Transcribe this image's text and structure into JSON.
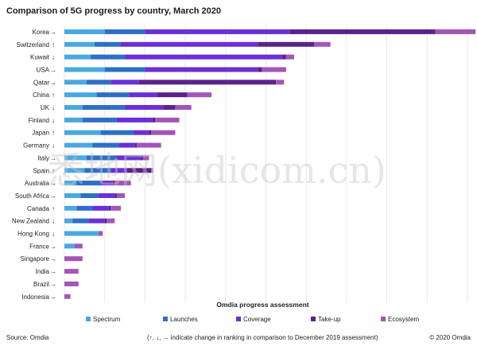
{
  "title": "Comparison of 5G progress by country, March 2020",
  "chart_data": {
    "type": "bar",
    "orientation": "horizontal",
    "stacked": true,
    "title": "Comparison of 5G progress by country, March 2020",
    "xlabel": "Omdia progress assessment",
    "ylabel": "",
    "xlim": [
      0,
      20
    ],
    "grid": true,
    "legend_position": "bottom",
    "categories": [
      "Korea",
      "Switzerland",
      "Kuwait",
      "USA",
      "Qatar",
      "China",
      "UK",
      "Finland",
      "Japan",
      "Germany",
      "Italy",
      "Spain",
      "Australia",
      "South Africa",
      "Canada",
      "New Zealand",
      "Hong Kong",
      "France",
      "Singapore",
      "India",
      "Brazil",
      "Indonesia"
    ],
    "rank_change": [
      "→",
      "↑",
      "↓",
      "→",
      "→",
      "↑",
      "↓",
      "↓",
      "↑",
      "↓",
      "→",
      "↑",
      "→",
      "→",
      "↑",
      "↓",
      "↓",
      "→",
      "→",
      "→",
      "→",
      "→"
    ],
    "series": [
      {
        "name": "Spectrum",
        "color": "#4aa8e0",
        "values": [
          2.0,
          1.5,
          1.3,
          2.0,
          1.1,
          1.6,
          0.9,
          0.9,
          1.8,
          1.4,
          1.1,
          1.0,
          0.6,
          0.8,
          0.6,
          0.4,
          1.7,
          0.5,
          0.0,
          0.0,
          0.0,
          0.0
        ]
      },
      {
        "name": "Launches",
        "color": "#2e6fc6",
        "values": [
          2.0,
          1.3,
          1.7,
          2.0,
          1.2,
          1.6,
          2.1,
          1.7,
          1.6,
          1.3,
          1.5,
          1.3,
          1.2,
          0.9,
          0.8,
          0.8,
          0.0,
          0.0,
          0.0,
          0.0,
          0.0,
          0.0
        ]
      },
      {
        "name": "Coverage",
        "color": "#6a2fd6",
        "values": [
          7.2,
          6.8,
          7.8,
          5.6,
          1.4,
          1.4,
          1.9,
          1.8,
          0.8,
          0.8,
          1.2,
          0.8,
          0.6,
          0.8,
          0.8,
          0.8,
          0.0,
          0.0,
          0.0,
          0.0,
          0.0,
          0.0
        ]
      },
      {
        "name": "Take-up",
        "color": "#5a238c",
        "values": [
          7.2,
          2.8,
          0.2,
          0.2,
          6.8,
          1.5,
          0.6,
          0.1,
          0.1,
          0.1,
          0.1,
          1.2,
          0.1,
          0.1,
          0.1,
          0.1,
          0.0,
          0.0,
          0.0,
          0.0,
          0.0,
          0.0
        ]
      },
      {
        "name": "Ecosystem",
        "color": "#a355b8",
        "values": [
          2.0,
          0.8,
          0.4,
          1.2,
          0.4,
          1.2,
          0.8,
          1.2,
          1.2,
          1.2,
          0.3,
          0.1,
          0.8,
          0.4,
          0.5,
          0.4,
          0.2,
          0.4,
          0.9,
          0.7,
          0.7,
          0.3
        ]
      }
    ]
  },
  "footer": {
    "source": "Source: Omdia",
    "note": "(↑, ↓, → indicate change in ranking in comparison to December 2019 assessment)",
    "copyright": "© 2020 Omdia"
  },
  "watermark": "悉地网(xidicom.cn)"
}
